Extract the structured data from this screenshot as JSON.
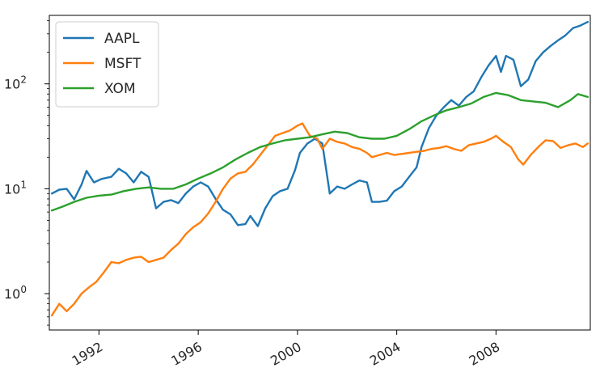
{
  "chart_data": {
    "type": "line",
    "title": "",
    "xlabel": "",
    "ylabel": "",
    "yscale": "log",
    "xlim": [
      1990.0,
      2011.8
    ],
    "ylim": [
      0.45,
      450
    ],
    "grid": false,
    "legend_position": "top-left",
    "x_ticks": [
      {
        "value": 1992,
        "label": "1992"
      },
      {
        "value": 1996,
        "label": "1996"
      },
      {
        "value": 2000,
        "label": "2000"
      },
      {
        "value": 2004,
        "label": "2004"
      },
      {
        "value": 2008,
        "label": "2008"
      }
    ],
    "y_ticks": [
      {
        "value": 1,
        "base": "10",
        "exp": "0"
      },
      {
        "value": 10,
        "base": "10",
        "exp": "1"
      },
      {
        "value": 100,
        "base": "10",
        "exp": "2"
      }
    ],
    "series": [
      {
        "name": "AAPL",
        "color": "#1f77b4",
        "points": [
          [
            1990.1,
            9.0
          ],
          [
            1990.4,
            9.8
          ],
          [
            1990.7,
            10.0
          ],
          [
            1991.0,
            7.9
          ],
          [
            1991.3,
            11.0
          ],
          [
            1991.5,
            14.8
          ],
          [
            1991.8,
            11.5
          ],
          [
            1992.1,
            12.4
          ],
          [
            1992.5,
            13.0
          ],
          [
            1992.8,
            15.5
          ],
          [
            1993.1,
            14.0
          ],
          [
            1993.4,
            11.5
          ],
          [
            1993.7,
            14.5
          ],
          [
            1994.0,
            13.0
          ],
          [
            1994.3,
            6.5
          ],
          [
            1994.6,
            7.5
          ],
          [
            1994.9,
            7.8
          ],
          [
            1995.2,
            7.3
          ],
          [
            1995.5,
            9.0
          ],
          [
            1995.8,
            10.5
          ],
          [
            1996.1,
            11.5
          ],
          [
            1996.4,
            10.5
          ],
          [
            1996.7,
            8.0
          ],
          [
            1997.0,
            6.3
          ],
          [
            1997.3,
            5.7
          ],
          [
            1997.6,
            4.5
          ],
          [
            1997.9,
            4.6
          ],
          [
            1998.1,
            5.5
          ],
          [
            1998.4,
            4.4
          ],
          [
            1998.7,
            6.5
          ],
          [
            1999.0,
            8.5
          ],
          [
            1999.3,
            9.5
          ],
          [
            1999.6,
            10.0
          ],
          [
            1999.9,
            15.0
          ],
          [
            2000.1,
            22.0
          ],
          [
            2000.4,
            27.0
          ],
          [
            2000.7,
            30.0
          ],
          [
            2001.0,
            27.0
          ],
          [
            2001.3,
            9.0
          ],
          [
            2001.6,
            10.5
          ],
          [
            2001.9,
            10.0
          ],
          [
            2002.2,
            11.0
          ],
          [
            2002.5,
            12.0
          ],
          [
            2002.8,
            11.5
          ],
          [
            2003.0,
            7.5
          ],
          [
            2003.3,
            7.5
          ],
          [
            2003.6,
            7.7
          ],
          [
            2003.9,
            9.5
          ],
          [
            2004.2,
            10.5
          ],
          [
            2004.5,
            13.0
          ],
          [
            2004.8,
            16.0
          ],
          [
            2005.0,
            25.0
          ],
          [
            2005.3,
            38.0
          ],
          [
            2005.6,
            50.0
          ],
          [
            2005.9,
            60.0
          ],
          [
            2006.2,
            70.0
          ],
          [
            2006.5,
            62.0
          ],
          [
            2006.8,
            75.0
          ],
          [
            2007.1,
            85.0
          ],
          [
            2007.4,
            115.0
          ],
          [
            2007.7,
            150.0
          ],
          [
            2008.0,
            185.0
          ],
          [
            2008.2,
            130.0
          ],
          [
            2008.4,
            185.0
          ],
          [
            2008.7,
            170.0
          ],
          [
            2009.0,
            95.0
          ],
          [
            2009.3,
            110.0
          ],
          [
            2009.6,
            165.0
          ],
          [
            2009.9,
            200.0
          ],
          [
            2010.2,
            230.0
          ],
          [
            2010.5,
            260.0
          ],
          [
            2010.8,
            290.0
          ],
          [
            2011.1,
            340.0
          ],
          [
            2011.4,
            360.0
          ],
          [
            2011.7,
            390.0
          ]
        ]
      },
      {
        "name": "MSFT",
        "color": "#ff7f0e",
        "points": [
          [
            1990.1,
            0.62
          ],
          [
            1990.4,
            0.8
          ],
          [
            1990.7,
            0.68
          ],
          [
            1991.0,
            0.8
          ],
          [
            1991.3,
            1.0
          ],
          [
            1991.6,
            1.15
          ],
          [
            1991.9,
            1.3
          ],
          [
            1992.2,
            1.6
          ],
          [
            1992.5,
            2.0
          ],
          [
            1992.8,
            1.95
          ],
          [
            1993.1,
            2.1
          ],
          [
            1993.4,
            2.2
          ],
          [
            1993.7,
            2.25
          ],
          [
            1994.0,
            2.0
          ],
          [
            1994.3,
            2.1
          ],
          [
            1994.6,
            2.2
          ],
          [
            1994.9,
            2.6
          ],
          [
            1995.2,
            3.0
          ],
          [
            1995.5,
            3.7
          ],
          [
            1995.8,
            4.3
          ],
          [
            1996.1,
            4.8
          ],
          [
            1996.4,
            5.8
          ],
          [
            1996.7,
            7.5
          ],
          [
            1997.0,
            10.0
          ],
          [
            1997.3,
            12.5
          ],
          [
            1997.6,
            14.0
          ],
          [
            1997.9,
            14.5
          ],
          [
            1998.2,
            17.0
          ],
          [
            1998.5,
            21.0
          ],
          [
            1998.8,
            26.0
          ],
          [
            1999.1,
            32.0
          ],
          [
            1999.4,
            34.0
          ],
          [
            1999.7,
            36.0
          ],
          [
            2000.0,
            40.0
          ],
          [
            2000.2,
            42.0
          ],
          [
            2000.5,
            32.0
          ],
          [
            2000.8,
            30.0
          ],
          [
            2001.0,
            24.0
          ],
          [
            2001.3,
            30.0
          ],
          [
            2001.6,
            28.0
          ],
          [
            2001.9,
            27.0
          ],
          [
            2002.2,
            25.0
          ],
          [
            2002.5,
            24.0
          ],
          [
            2002.8,
            22.0
          ],
          [
            2003.0,
            20.0
          ],
          [
            2003.3,
            21.0
          ],
          [
            2003.6,
            22.0
          ],
          [
            2003.9,
            21.0
          ],
          [
            2004.2,
            21.5
          ],
          [
            2004.5,
            22.0
          ],
          [
            2004.8,
            22.5
          ],
          [
            2005.1,
            23.0
          ],
          [
            2005.4,
            24.0
          ],
          [
            2005.7,
            24.5
          ],
          [
            2006.0,
            25.5
          ],
          [
            2006.3,
            24.0
          ],
          [
            2006.6,
            23.0
          ],
          [
            2006.9,
            26.0
          ],
          [
            2007.2,
            27.0
          ],
          [
            2007.5,
            28.0
          ],
          [
            2007.8,
            30.0
          ],
          [
            2008.0,
            32.0
          ],
          [
            2008.3,
            28.0
          ],
          [
            2008.6,
            25.0
          ],
          [
            2008.9,
            19.0
          ],
          [
            2009.1,
            17.0
          ],
          [
            2009.4,
            21.0
          ],
          [
            2009.7,
            25.0
          ],
          [
            2010.0,
            29.0
          ],
          [
            2010.3,
            28.5
          ],
          [
            2010.6,
            24.5
          ],
          [
            2010.9,
            26.0
          ],
          [
            2011.2,
            27.0
          ],
          [
            2011.5,
            25.0
          ],
          [
            2011.7,
            27.0
          ]
        ]
      },
      {
        "name": "XOM",
        "color": "#2ca02c",
        "points": [
          [
            1990.1,
            6.2
          ],
          [
            1990.5,
            6.7
          ],
          [
            1991.0,
            7.5
          ],
          [
            1991.5,
            8.2
          ],
          [
            1992.0,
            8.6
          ],
          [
            1992.5,
            8.8
          ],
          [
            1993.0,
            9.5
          ],
          [
            1993.5,
            10.0
          ],
          [
            1994.0,
            10.3
          ],
          [
            1994.5,
            10.0
          ],
          [
            1995.0,
            10.0
          ],
          [
            1995.5,
            11.0
          ],
          [
            1996.0,
            12.5
          ],
          [
            1996.5,
            14.0
          ],
          [
            1997.0,
            16.0
          ],
          [
            1997.5,
            19.0
          ],
          [
            1998.0,
            22.0
          ],
          [
            1998.5,
            25.0
          ],
          [
            1999.0,
            27.0
          ],
          [
            1999.5,
            29.0
          ],
          [
            2000.0,
            30.0
          ],
          [
            2000.5,
            31.0
          ],
          [
            2001.0,
            33.0
          ],
          [
            2001.5,
            35.0
          ],
          [
            2002.0,
            34.0
          ],
          [
            2002.5,
            31.0
          ],
          [
            2003.0,
            30.0
          ],
          [
            2003.5,
            30.0
          ],
          [
            2004.0,
            32.0
          ],
          [
            2004.5,
            37.0
          ],
          [
            2005.0,
            44.0
          ],
          [
            2005.5,
            50.0
          ],
          [
            2006.0,
            56.0
          ],
          [
            2006.5,
            60.0
          ],
          [
            2007.0,
            65.0
          ],
          [
            2007.5,
            75.0
          ],
          [
            2008.0,
            82.0
          ],
          [
            2008.5,
            78.0
          ],
          [
            2009.0,
            70.0
          ],
          [
            2009.5,
            68.0
          ],
          [
            2010.0,
            66.0
          ],
          [
            2010.5,
            60.0
          ],
          [
            2011.0,
            70.0
          ],
          [
            2011.3,
            80.0
          ],
          [
            2011.7,
            75.0
          ]
        ]
      }
    ]
  }
}
